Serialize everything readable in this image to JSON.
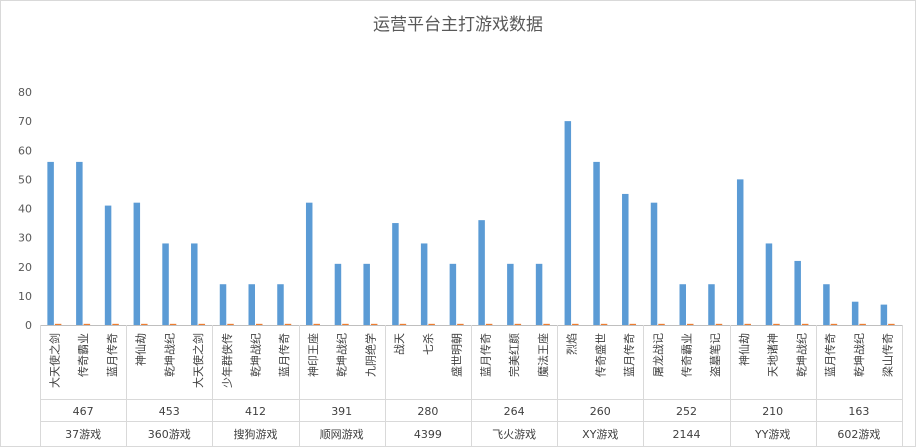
{
  "chart_data": {
    "type": "bar",
    "title": "运营平台主打游戏数据",
    "ylim": [
      0,
      80
    ],
    "yticks": [
      0,
      10,
      20,
      30,
      40,
      50,
      60,
      70,
      80
    ],
    "grid": false,
    "legend": "none",
    "colors": {
      "bar": "#5b9bd5",
      "bar2": "#ed7d31"
    },
    "groups": [
      {
        "platform": "37游戏",
        "total": "467",
        "items": [
          {
            "game": "大天使之剑",
            "value": 56,
            "value2": 0.4
          },
          {
            "game": "传奇霸业",
            "value": 56,
            "value2": 0.4
          },
          {
            "game": "蓝月传奇",
            "value": 41,
            "value2": 0.4
          }
        ]
      },
      {
        "platform": "360游戏",
        "total": "453",
        "items": [
          {
            "game": "神仙劫",
            "value": 42,
            "value2": 0.4
          },
          {
            "game": "乾坤战纪",
            "value": 28,
            "value2": 0.4
          },
          {
            "game": "大天使之剑",
            "value": 28,
            "value2": 0.4
          }
        ]
      },
      {
        "platform": "搜狗游戏",
        "total": "412",
        "items": [
          {
            "game": "少年群侠传",
            "value": 14,
            "value2": 0.4
          },
          {
            "game": "乾坤战纪",
            "value": 14,
            "value2": 0.4
          },
          {
            "game": "蓝月传奇",
            "value": 14,
            "value2": 0.4
          }
        ]
      },
      {
        "platform": "顺网游戏",
        "total": "391",
        "items": [
          {
            "game": "神印王座",
            "value": 42,
            "value2": 0.4
          },
          {
            "game": "乾坤战纪",
            "value": 21,
            "value2": 0.4
          },
          {
            "game": "九阴绝学",
            "value": 21,
            "value2": 0.4
          }
        ]
      },
      {
        "platform": "4399",
        "total": "280",
        "items": [
          {
            "game": "战天",
            "value": 35,
            "value2": 0.4
          },
          {
            "game": "七杀",
            "value": 28,
            "value2": 0.4
          },
          {
            "game": "盛世明朝",
            "value": 21,
            "value2": 0.4
          }
        ]
      },
      {
        "platform": "飞火游戏",
        "total": "264",
        "items": [
          {
            "game": "蓝月传奇",
            "value": 36,
            "value2": 0.4
          },
          {
            "game": "完美红颜",
            "value": 21,
            "value2": 0.4
          },
          {
            "game": "魔法王座",
            "value": 21,
            "value2": 0.4
          }
        ]
      },
      {
        "platform": "XY游戏",
        "total": "260",
        "items": [
          {
            "game": "烈焰",
            "value": 70,
            "value2": 0.4
          },
          {
            "game": "传奇盛世",
            "value": 56,
            "value2": 0.4
          },
          {
            "game": "蓝月传奇",
            "value": 45,
            "value2": 0.4
          }
        ]
      },
      {
        "platform": "2144",
        "total": "252",
        "items": [
          {
            "game": "屠龙战记",
            "value": 42,
            "value2": 0.4
          },
          {
            "game": "传奇霸业",
            "value": 14,
            "value2": 0.4
          },
          {
            "game": "盗墓笔记",
            "value": 14,
            "value2": 0.4
          }
        ]
      },
      {
        "platform": "YY游戏",
        "total": "210",
        "items": [
          {
            "game": "神仙劫",
            "value": 50,
            "value2": 0.4
          },
          {
            "game": "天地诸神",
            "value": 28,
            "value2": 0.4
          },
          {
            "game": "乾坤战纪",
            "value": 22,
            "value2": 0.4
          }
        ]
      },
      {
        "platform": "602游戏",
        "total": "163",
        "items": [
          {
            "game": "蓝月传奇",
            "value": 14,
            "value2": 0.4
          },
          {
            "game": "乾坤战纪",
            "value": 8,
            "value2": 0.4
          },
          {
            "game": "梁山传奇",
            "value": 7,
            "value2": 0.4
          }
        ]
      }
    ]
  }
}
